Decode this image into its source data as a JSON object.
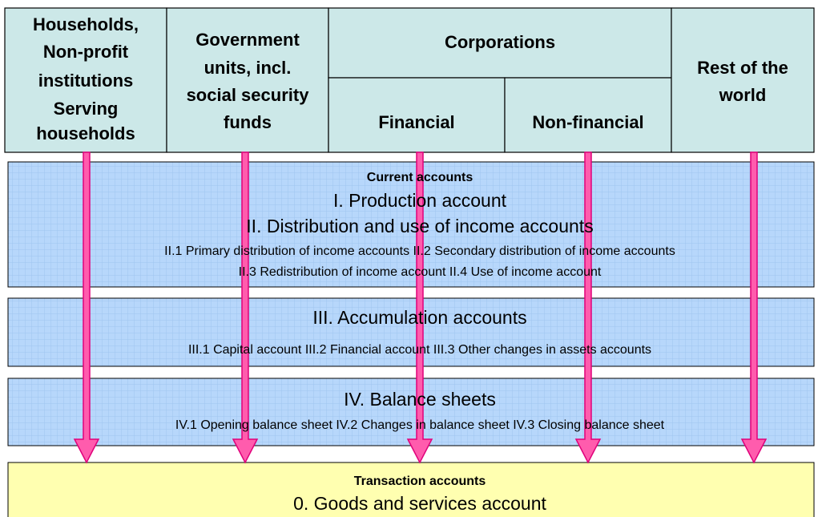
{
  "columns": [
    {
      "lines": [
        "Households,",
        "Non-profit",
        "institutions",
        "Serving",
        "households"
      ]
    },
    {
      "lines": [
        "Government",
        "units, incl.",
        "social security",
        "funds"
      ]
    },
    {
      "group": "Corporations",
      "subcolumns": [
        "Financial",
        "Non-financial"
      ]
    },
    {
      "lines": [
        "Rest of the",
        "world"
      ]
    }
  ],
  "sections": [
    {
      "heading": "Current accounts",
      "title_lines": [
        "I. Production account",
        "II. Distribution and use of income accounts"
      ],
      "detail_lines": [
        "II.1 Primary distribution of income accounts II.2 Secondary distribution of income accounts",
        "II.3 Redistribution of income account II.4 Use of income account"
      ]
    },
    {
      "title_lines": [
        "III. Accumulation accounts"
      ],
      "detail_lines": [
        "III.1 Capital account III.2 Financial account III.3 Other changes in assets accounts"
      ]
    },
    {
      "title_lines": [
        "IV. Balance sheets"
      ],
      "detail_lines": [
        "IV.1 Opening balance sheet IV.2 Changes in balance sheet IV.3 Closing balance sheet"
      ]
    }
  ],
  "transaction": {
    "heading": "Transaction accounts",
    "title": "0. Goods and services account"
  }
}
